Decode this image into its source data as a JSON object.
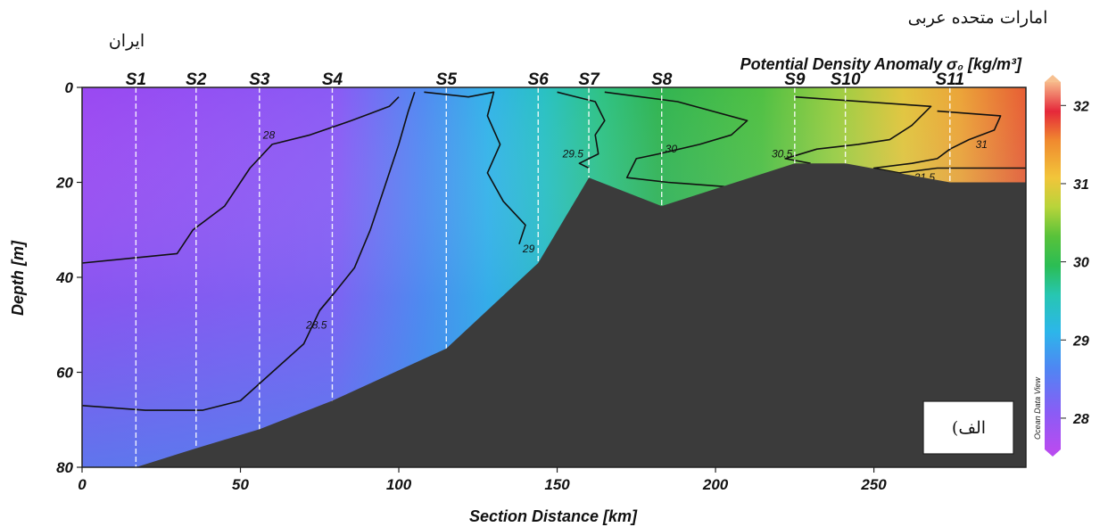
{
  "chart_data": {
    "type": "heatmap",
    "title": "Potential Density Anomaly σ₀ [kg/m³]",
    "xlabel": "Section Distance [km]",
    "ylabel": "Depth [m]",
    "xlim": [
      0,
      298
    ],
    "ylim": [
      0,
      80
    ],
    "y_inverted": true,
    "xticks": [
      0,
      50,
      100,
      150,
      200,
      250
    ],
    "yticks": [
      0,
      20,
      40,
      60,
      80
    ],
    "stations": [
      {
        "name": "S1",
        "x": 17
      },
      {
        "name": "S2",
        "x": 36
      },
      {
        "name": "S3",
        "x": 56
      },
      {
        "name": "S4",
        "x": 79
      },
      {
        "name": "S5",
        "x": 115
      },
      {
        "name": "S6",
        "x": 144
      },
      {
        "name": "S7",
        "x": 160
      },
      {
        "name": "S8",
        "x": 183
      },
      {
        "name": "S9",
        "x": 225
      },
      {
        "name": "S10",
        "x": 241
      },
      {
        "name": "S11",
        "x": 274
      }
    ],
    "bathymetry": [
      [
        0,
        80
      ],
      [
        17,
        80
      ],
      [
        36,
        76
      ],
      [
        56,
        72
      ],
      [
        79,
        66
      ],
      [
        115,
        55
      ],
      [
        144,
        37
      ],
      [
        160,
        19
      ],
      [
        183,
        25
      ],
      [
        225,
        16
      ],
      [
        241,
        16
      ],
      [
        274,
        20
      ],
      [
        298,
        20
      ]
    ],
    "colorbar": {
      "min": 27.6,
      "max": 32.3,
      "ticks": [
        28,
        29,
        30,
        31,
        32
      ],
      "label": "Ocean Data View"
    },
    "contours": [
      {
        "level": "28",
        "points": [
          [
            0,
            37
          ],
          [
            30,
            35
          ],
          [
            35,
            30
          ],
          [
            45,
            25
          ],
          [
            53,
            17
          ],
          [
            60,
            12
          ],
          [
            72,
            10
          ],
          [
            85,
            7
          ],
          [
            97,
            4
          ],
          [
            100,
            2
          ]
        ],
        "label_at": [
          59,
          10
        ]
      },
      {
        "level": "28",
        "points": [
          [
            0,
            67
          ],
          [
            20,
            68
          ],
          [
            38,
            68
          ],
          [
            50,
            66
          ],
          [
            60,
            60
          ],
          [
            70,
            54
          ],
          [
            75,
            47
          ],
          [
            80,
            43
          ],
          [
            86,
            38
          ],
          [
            91,
            30
          ],
          [
            95,
            22
          ],
          [
            100,
            12
          ],
          [
            103,
            5
          ],
          [
            105,
            1
          ]
        ]
      },
      {
        "level": "28.5",
        "points": [
          [
            75,
            47
          ],
          [
            80,
            43
          ]
        ],
        "label_at": [
          74,
          50
        ]
      },
      {
        "level": "29",
        "points": [
          [
            108,
            1
          ],
          [
            122,
            2
          ],
          [
            130,
            1
          ],
          [
            128,
            6
          ],
          [
            132,
            12
          ],
          [
            128,
            18
          ],
          [
            133,
            24
          ],
          [
            140,
            29
          ],
          [
            138,
            33
          ]
        ],
        "label_at": [
          141,
          34
        ]
      },
      {
        "level": "29.5",
        "points": [
          [
            150,
            1
          ],
          [
            162,
            3
          ],
          [
            165,
            7
          ],
          [
            162,
            10
          ],
          [
            163,
            14
          ],
          [
            157,
            16
          ],
          [
            160,
            17
          ]
        ],
        "label_at": [
          155,
          14
        ]
      },
      {
        "level": "30",
        "points": [
          [
            165,
            1
          ],
          [
            188,
            3
          ],
          [
            210,
            7
          ],
          [
            205,
            10
          ],
          [
            195,
            12
          ],
          [
            182,
            14
          ],
          [
            175,
            15
          ],
          [
            172,
            19
          ],
          [
            185,
            20
          ],
          [
            205,
            21
          ],
          [
            215,
            20
          ],
          [
            225,
            18
          ]
        ],
        "label_at": [
          186,
          13
        ]
      },
      {
        "level": "30.5",
        "points": [
          [
            225,
            2
          ],
          [
            268,
            4
          ],
          [
            262,
            8
          ],
          [
            255,
            11
          ],
          [
            245,
            12
          ],
          [
            232,
            13
          ],
          [
            222,
            15
          ],
          [
            230,
            16
          ]
        ],
        "label_at": [
          221,
          14
        ]
      },
      {
        "level": "31",
        "points": [
          [
            270,
            5
          ],
          [
            290,
            6
          ],
          [
            288,
            9
          ],
          [
            280,
            11
          ],
          [
            274,
            13
          ],
          [
            270,
            15
          ],
          [
            262,
            16
          ],
          [
            250,
            17
          ],
          [
            258,
            18
          ]
        ],
        "label_at": [
          284,
          12
        ]
      },
      {
        "level": "31.5",
        "points": [
          [
            258,
            18
          ],
          [
            270,
            17
          ],
          [
            285,
            17
          ],
          [
            298,
            17
          ]
        ],
        "label_at": [
          266,
          19
        ]
      }
    ]
  },
  "labels": {
    "left_country": "ایران",
    "right_country": "امارات متحده عربی",
    "panel_tag": "الف)",
    "watermark": "Ocean Data View"
  },
  "colors": {
    "seabed": "#3b3b3b",
    "station_line": "#ffffff",
    "contour": "#111111"
  }
}
